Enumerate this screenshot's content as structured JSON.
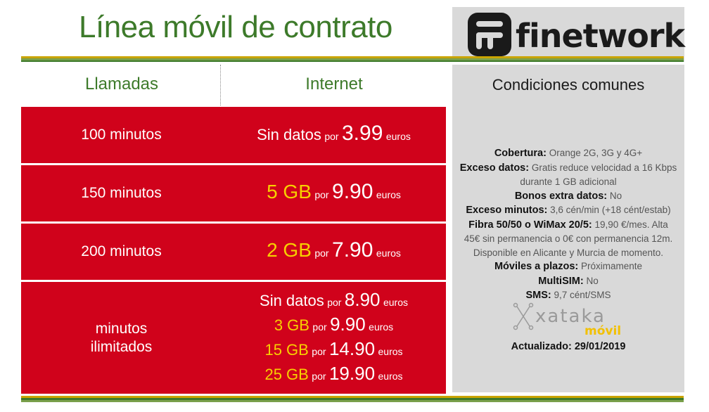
{
  "title": "Línea móvil de contrato",
  "brand": {
    "name": "finetwork"
  },
  "headers": {
    "calls": "Llamadas",
    "internet": "Internet",
    "conditions": "Condiciones comunes"
  },
  "rows": [
    {
      "calls": "100 minutos",
      "offers": [
        {
          "data": "Sin datos",
          "por": "por",
          "price": "3.99",
          "unit": "euros"
        }
      ]
    },
    {
      "calls": "150 minutos",
      "offers": [
        {
          "data": "5 GB",
          "por": "por",
          "price": "9.90",
          "unit": "euros"
        }
      ]
    },
    {
      "calls": "200 minutos",
      "offers": [
        {
          "data": "2 GB",
          "por": "por",
          "price": "7.90",
          "unit": "euros"
        }
      ]
    },
    {
      "calls_line1": "minutos",
      "calls_line2": "ilimitados",
      "offers": [
        {
          "data": "Sin datos",
          "por": "por",
          "price": "8.90",
          "unit": "euros"
        },
        {
          "data": "3 GB",
          "por": "por",
          "price": "9.90",
          "unit": "euros"
        },
        {
          "data": "15 GB",
          "por": "por",
          "price": "14.90",
          "unit": "euros"
        },
        {
          "data": "25 GB",
          "por": "por",
          "price": "19.90",
          "unit": "euros"
        }
      ]
    }
  ],
  "conditions": [
    {
      "label": "Cobertura:",
      "value": "Orange 2G, 3G y 4G+"
    },
    {
      "label": "Exceso datos:",
      "value": "Gratis reduce velocidad a 16 Kbps",
      "value2": "durante 1 GB adicional"
    },
    {
      "label": "Bonos extra datos:",
      "value": "No"
    },
    {
      "label": "Exceso minutos:",
      "value": "3,6 cén/min (+18 cént/estab)"
    },
    {
      "label": "Fibra 50/50 o WiMax 20/5:",
      "value": "19,90 €/mes. Alta",
      "value2": "45€ sin permanencia o 0€ con permanencia 12m.",
      "value3": "Disponible en Alicante y Murcia de momento."
    },
    {
      "label": "Móviles a plazos:",
      "value": "Próximamente"
    },
    {
      "label": "MultiSIM:",
      "value": "No"
    },
    {
      "label": "SMS:",
      "value": "9,7 cént/SMS"
    }
  ],
  "watermark": {
    "line1": "xataka",
    "line2": "móvil"
  },
  "updated": "Actualizado: 29/01/2019",
  "colors": {
    "red": "#d0021b",
    "green": "#3d7a2a",
    "yellow": "#f7d000",
    "panel": "#d9d9d9"
  }
}
